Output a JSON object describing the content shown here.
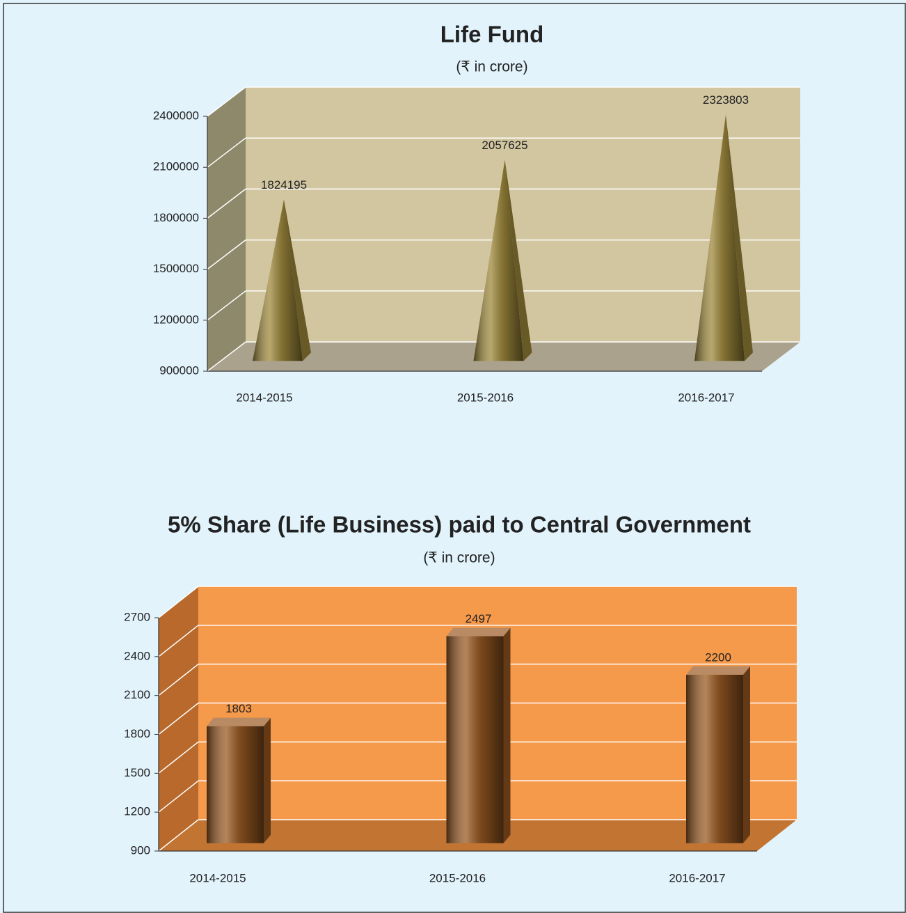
{
  "chart_data": [
    {
      "type": "pyramid",
      "title": "Life Fund",
      "subtitle": "(₹ in crore)",
      "categories": [
        "2014-2015",
        "2015-2016",
        "2016-2017"
      ],
      "values": [
        1824195,
        2057625,
        2323803
      ],
      "color": "#a08a3c",
      "wall_color": "#d2c6a0",
      "side_color": "#8f896c",
      "floor_color": "#aaa28c",
      "ylim": [
        900000,
        2400000
      ],
      "yticks": [
        900000,
        1200000,
        1500000,
        1800000,
        2100000,
        2400000
      ],
      "grid": true
    },
    {
      "type": "bar",
      "title": "5% Share (Life Business) paid to Central Government",
      "subtitle": "(₹ in crore)",
      "categories": [
        "2014-2015",
        "2015-2016",
        "2016-2017"
      ],
      "values": [
        1803,
        2497,
        2200
      ],
      "color": "#9a5a22",
      "wall_color": "#f5994a",
      "side_color": "#b8692b",
      "floor_color": "#c27433",
      "ylim": [
        900,
        2700
      ],
      "yticks": [
        900,
        1200,
        1500,
        1800,
        2100,
        2400,
        2700
      ],
      "grid": true
    }
  ]
}
